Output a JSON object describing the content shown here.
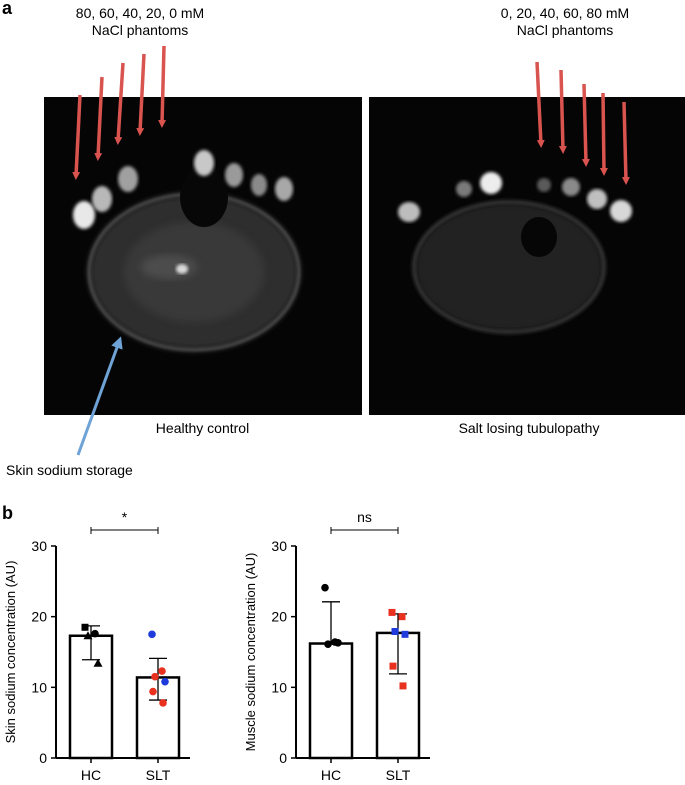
{
  "panels": {
    "a": {
      "letter": "a",
      "left_phantom_label_line1": "80, 60, 40, 20, 0 mM",
      "left_phantom_label_line2": "NaCl phantoms",
      "right_phantom_label_line1": "0, 20, 40, 60, 80 mM",
      "right_phantom_label_line2": "NaCl phantoms",
      "left_caption": "Healthy control",
      "right_caption": "Salt losing tubulopathy",
      "skin_label": "Skin sodium storage",
      "colors": {
        "phantom_arrow": "#d9534f",
        "skin_arrow": "#6fa3d6",
        "image_bg": "#050505"
      }
    },
    "b": {
      "letter": "b"
    }
  },
  "chart_data": [
    {
      "type": "bar",
      "ylabel": "Skin sodium concentration (AU)",
      "categories": [
        "HC",
        "SLT"
      ],
      "values": [
        17.3,
        11.4
      ],
      "error": [
        [
          13.9,
          18.7
        ],
        [
          8.2,
          14.1
        ]
      ],
      "ylim": [
        0,
        30
      ],
      "yticks": [
        0,
        10,
        20,
        30
      ],
      "significance": "*",
      "points": {
        "HC": [
          {
            "y": 18.5,
            "color": "#000000",
            "shape": "square"
          },
          {
            "y": 17.6,
            "color": "#000000",
            "shape": "circle"
          },
          {
            "y": 17.3,
            "color": "#000000",
            "shape": "triangle"
          },
          {
            "y": 13.4,
            "color": "#000000",
            "shape": "triangle"
          }
        ],
        "SLT": [
          {
            "y": 17.5,
            "color": "#1f3bdb",
            "shape": "circle"
          },
          {
            "y": 12.3,
            "color": "#e8321f",
            "shape": "circle"
          },
          {
            "y": 11.5,
            "color": "#e8321f",
            "shape": "circle"
          },
          {
            "y": 10.8,
            "color": "#1f3bdb",
            "shape": "circle"
          },
          {
            "y": 9.4,
            "color": "#e8321f",
            "shape": "circle"
          },
          {
            "y": 7.8,
            "color": "#e8321f",
            "shape": "circle"
          }
        ]
      }
    },
    {
      "type": "bar",
      "ylabel": "Muscle sodium concentration (AU)",
      "categories": [
        "HC",
        "SLT"
      ],
      "values": [
        16.2,
        17.7
      ],
      "error": [
        [
          16.2,
          22.1
        ],
        [
          11.9,
          20.4
        ]
      ],
      "ylim": [
        0,
        30
      ],
      "yticks": [
        0,
        10,
        20,
        30
      ],
      "significance": "ns",
      "points": {
        "HC": [
          {
            "y": 24.1,
            "color": "#000000",
            "shape": "circle"
          },
          {
            "y": 16.4,
            "color": "#000000",
            "shape": "circle"
          },
          {
            "y": 16.1,
            "color": "#000000",
            "shape": "circle"
          },
          {
            "y": 16.3,
            "color": "#000000",
            "shape": "circle"
          }
        ],
        "SLT": [
          {
            "y": 20.6,
            "color": "#e8321f",
            "shape": "square"
          },
          {
            "y": 20.0,
            "color": "#e8321f",
            "shape": "square"
          },
          {
            "y": 17.9,
            "color": "#1f3bdb",
            "shape": "square"
          },
          {
            "y": 17.5,
            "color": "#1f3bdb",
            "shape": "square"
          },
          {
            "y": 13.0,
            "color": "#e8321f",
            "shape": "square"
          },
          {
            "y": 10.2,
            "color": "#e8321f",
            "shape": "square"
          }
        ]
      }
    }
  ]
}
